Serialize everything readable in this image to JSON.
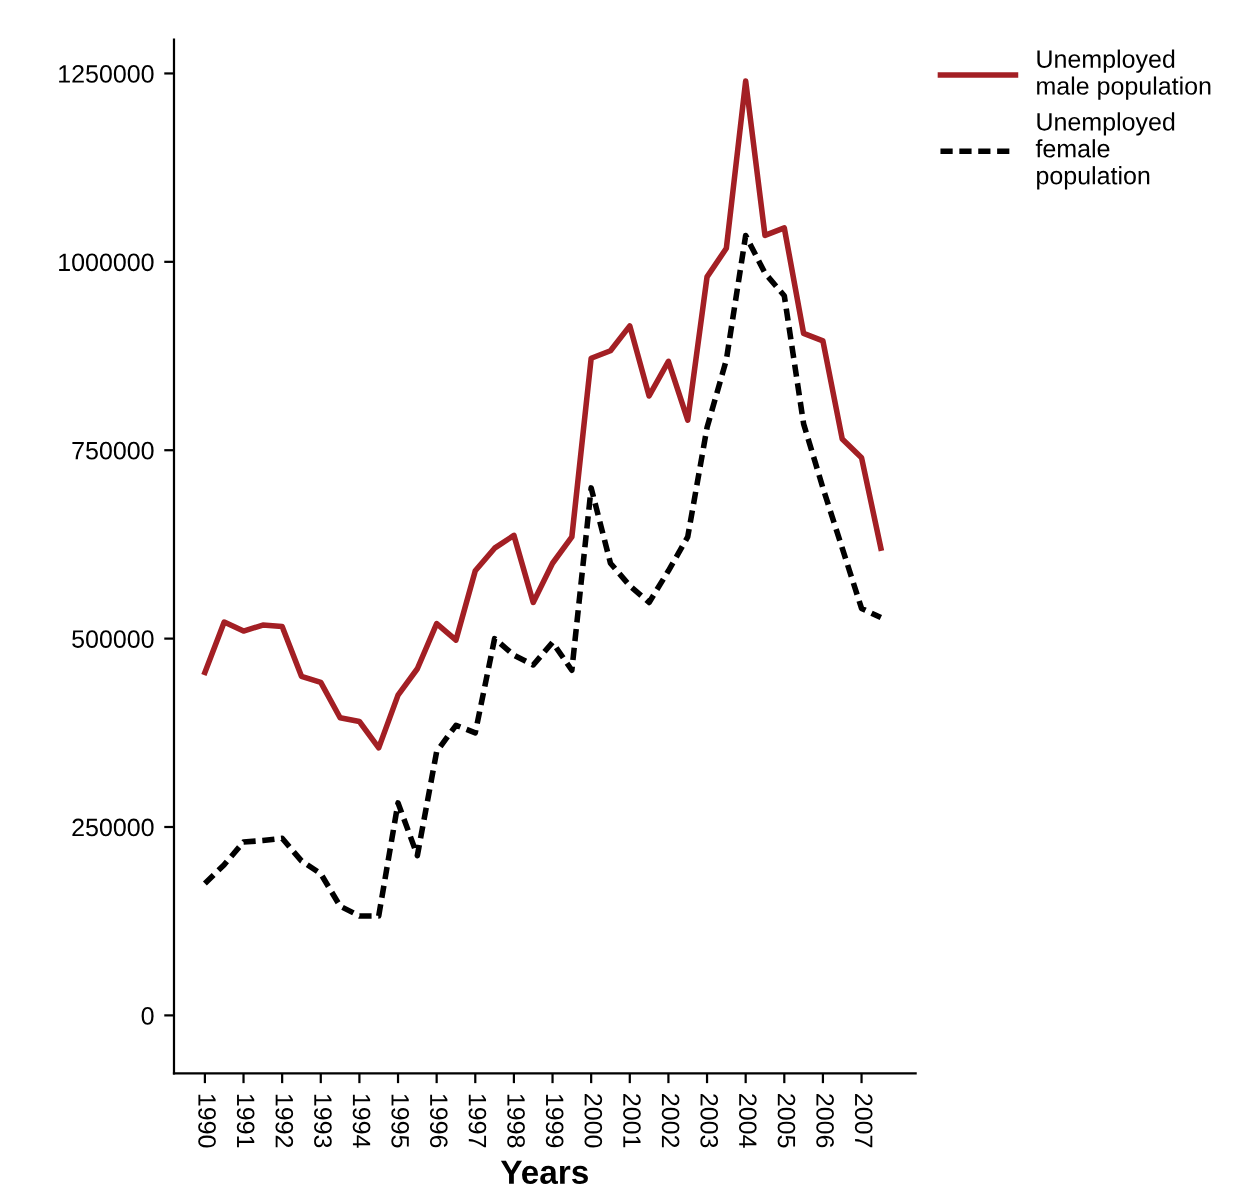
{
  "chart_data": {
    "type": "line",
    "xlabel": "Years",
    "x": [
      1990,
      1990.5,
      1991,
      1991.5,
      1992,
      1992.5,
      1993,
      1993.5,
      1994,
      1994.5,
      1995,
      1995.5,
      1996,
      1996.5,
      1997,
      1997.5,
      1998,
      1998.5,
      1999,
      1999.5,
      2000,
      2000.5,
      2001,
      2001.5,
      2002,
      2002.5,
      2003,
      2003.5,
      2004,
      2004.5,
      2005,
      2005.5,
      2006,
      2006.5,
      2007,
      2007.5
    ],
    "series": [
      {
        "name": "Unemployed\nmale population",
        "color": "#a31f24",
        "line_style": "solid",
        "values": [
          455000,
          522000,
          510000,
          518000,
          516000,
          450000,
          442000,
          395000,
          390000,
          355000,
          425000,
          460000,
          520000,
          498000,
          590000,
          620000,
          637000,
          548000,
          600000,
          635000,
          872000,
          882000,
          915000,
          822000,
          868000,
          790000,
          980000,
          1018000,
          1240000,
          1035000,
          1045000,
          905000,
          895000,
          765000,
          740000,
          620000
        ]
      },
      {
        "name": "Unemployed\nfemale\npopulation",
        "color": "#000000",
        "line_style": "dashed",
        "values": [
          175000,
          200000,
          230000,
          232000,
          235000,
          205000,
          188000,
          145000,
          132000,
          132000,
          282000,
          212000,
          350000,
          385000,
          375000,
          500000,
          478000,
          465000,
          495000,
          458000,
          700000,
          600000,
          570000,
          548000,
          590000,
          635000,
          780000,
          870000,
          1035000,
          985000,
          955000,
          785000,
          700000,
          620000,
          540000,
          528000
        ]
      }
    ],
    "xlim": [
      1989.2,
      2008.4
    ],
    "xticks": [
      1990,
      1991,
      1992,
      1993,
      1994,
      1995,
      1996,
      1997,
      1998,
      1999,
      2000,
      2001,
      2002,
      2003,
      2004,
      2005,
      2006,
      2007
    ],
    "ylim": [
      -77000,
      1295000
    ],
    "yticks": [
      0,
      250000,
      500000,
      750000,
      1000000,
      1250000
    ],
    "grid": false,
    "legend": "top right",
    "marker": "none"
  }
}
